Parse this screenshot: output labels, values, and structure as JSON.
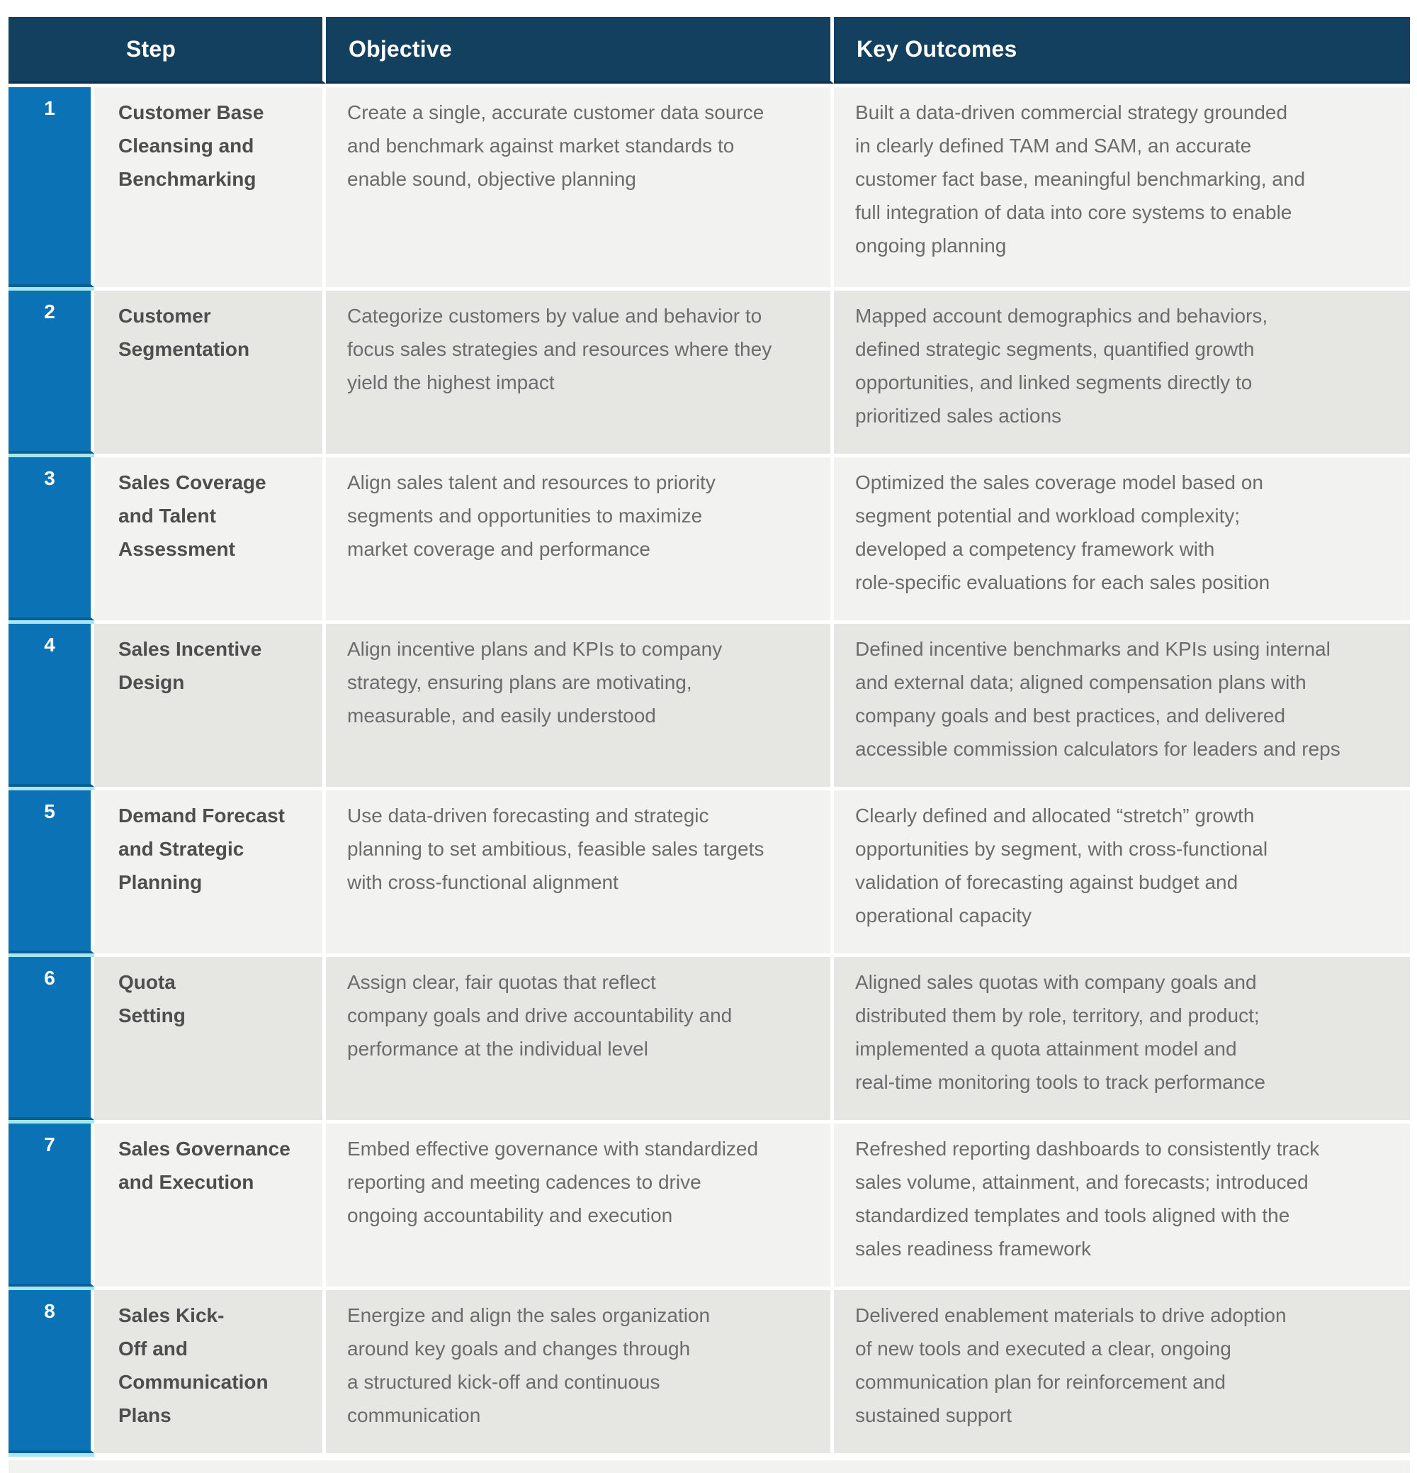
{
  "colors": {
    "header_bg": "#144060",
    "number_bg": "#0b73b5",
    "number_separator": "#a9e4f1",
    "row_light": "#f2f2f0",
    "row_dark": "#e6e6e3",
    "step_text": "#4e4e4e",
    "body_text": "#6c6c6c"
  },
  "table": {
    "headers": {
      "step": "Step",
      "objective": "Objective",
      "outcomes": "Key Outcomes"
    },
    "rows": [
      {
        "num": "1",
        "step": "Customer Base\nCleansing and\nBenchmarking",
        "objective": "Create a single, accurate customer data source\nand benchmark against market standards to\nenable sound, objective planning",
        "outcomes": "Built a data-driven commercial strategy grounded\nin clearly defined TAM and SAM, an accurate\ncustomer fact base, meaningful benchmarking, and\nfull integration of data into core systems to enable\nongoing planning"
      },
      {
        "num": "2",
        "step": "Customer\nSegmentation",
        "objective": "Categorize customers by value and behavior to\nfocus sales strategies and resources where they\nyield the highest impact",
        "outcomes": "Mapped account demographics and behaviors,\ndefined strategic segments, quantified growth\nopportunities, and linked segments directly to\nprioritized sales actions"
      },
      {
        "num": "3",
        "step": "Sales Coverage\nand Talent\nAssessment",
        "objective": "Align sales talent and resources to priority\nsegments and opportunities to maximize\nmarket coverage and performance",
        "outcomes": "Optimized the sales coverage model based on\nsegment potential and workload complexity;\ndeveloped a competency framework with\nrole-specific evaluations for each sales position"
      },
      {
        "num": "4",
        "step": "Sales Incentive\nDesign",
        "objective": "Align incentive plans and KPIs to company\nstrategy, ensuring plans are motivating,\nmeasurable, and easily understood",
        "outcomes": "Defined incentive benchmarks and KPIs using internal\nand external data; aligned compensation plans with\ncompany goals and best practices, and delivered\naccessible commission calculators for leaders and reps"
      },
      {
        "num": "5",
        "step": "Demand Forecast\nand Strategic\nPlanning",
        "objective": "Use data-driven forecasting and strategic\nplanning to set ambitious, feasible sales targets\nwith cross-functional alignment",
        "outcomes": "Clearly defined and allocated “stretch” growth\nopportunities by segment, with cross-functional\nvalidation of forecasting against budget and\noperational capacity"
      },
      {
        "num": "6",
        "step": "Quota\nSetting",
        "objective": "Assign clear, fair quotas that reflect\ncompany goals and drive accountability and\nperformance at the individual level",
        "outcomes": "Aligned sales quotas with company goals and\ndistributed them by role, territory, and product;\nimplemented a quota attainment model and\nreal-time monitoring tools to track performance"
      },
      {
        "num": "7",
        "step": "Sales Governance\nand Execution",
        "objective": "Embed effective governance with standardized\nreporting and meeting cadences to drive\nongoing accountability and execution",
        "outcomes": "Refreshed reporting dashboards to consistently track\nsales volume, attainment, and forecasts; introduced\nstandardized templates and tools aligned with the\nsales readiness framework"
      },
      {
        "num": "8",
        "step": "Sales Kick-\nOff and\nCommunication\nPlans",
        "objective": "Energize and align the sales organization\naround key goals and changes through\na structured kick-off and continuous\ncommunication",
        "outcomes": "Delivered enablement materials to drive adoption\nof new tools and executed a clear, ongoing\ncommunication plan for reinforcement and\nsustained support"
      }
    ]
  }
}
